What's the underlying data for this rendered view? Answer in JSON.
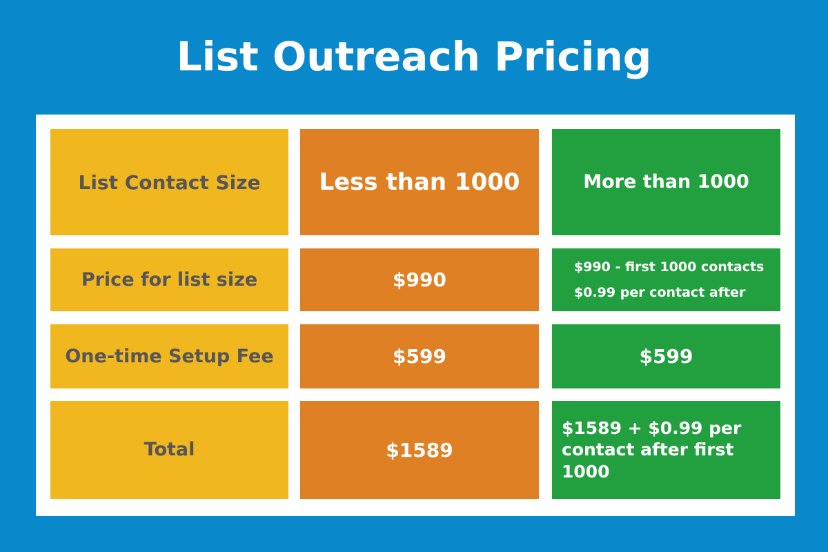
{
  "title": "List Outreach Pricing",
  "table": {
    "rows": [
      [
        "List Contact Size",
        "Less than 1000",
        "More than 1000"
      ],
      [
        "Price for list size",
        "$990",
        [
          "$990 - first 1000 contacts",
          "$0.99 per contact after"
        ]
      ],
      [
        "One-time Setup Fee",
        "$599",
        "$599"
      ],
      [
        "Total",
        "$1589",
        "$1589 + $0.99 per contact after first 1000"
      ]
    ]
  }
}
